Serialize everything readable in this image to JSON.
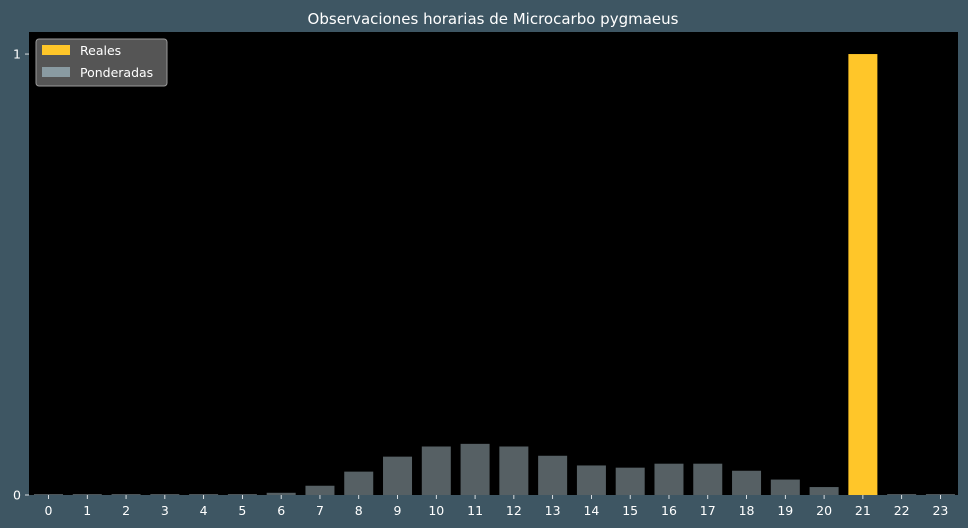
{
  "chart_data": {
    "type": "bar",
    "title": "Observaciones horarias de Microcarbo pygmaeus",
    "xlabel": "",
    "ylabel": "",
    "categories": [
      "0",
      "1",
      "2",
      "3",
      "4",
      "5",
      "6",
      "7",
      "8",
      "9",
      "10",
      "11",
      "12",
      "13",
      "14",
      "15",
      "16",
      "17",
      "18",
      "19",
      "20",
      "21",
      "22",
      "23"
    ],
    "yticks": [
      "0",
      "1"
    ],
    "ylim": [
      0,
      1.05
    ],
    "grid": false,
    "legend_position": "top-left",
    "series": [
      {
        "name": "Reales",
        "color": "#ffc629",
        "values": [
          0,
          0,
          0,
          0,
          0,
          0,
          0,
          0,
          0,
          0,
          0,
          0,
          0,
          0,
          0,
          0,
          0,
          0,
          0,
          0,
          0,
          1,
          0,
          0
        ]
      },
      {
        "name": "Ponderadas",
        "color": "#8a9ba2",
        "values": [
          0.002,
          0.002,
          0.002,
          0.002,
          0.002,
          0.002,
          0.005,
          0.021,
          0.053,
          0.087,
          0.11,
          0.116,
          0.11,
          0.089,
          0.067,
          0.062,
          0.071,
          0.071,
          0.055,
          0.035,
          0.018,
          0.005,
          0.002,
          0.002
        ]
      }
    ]
  }
}
